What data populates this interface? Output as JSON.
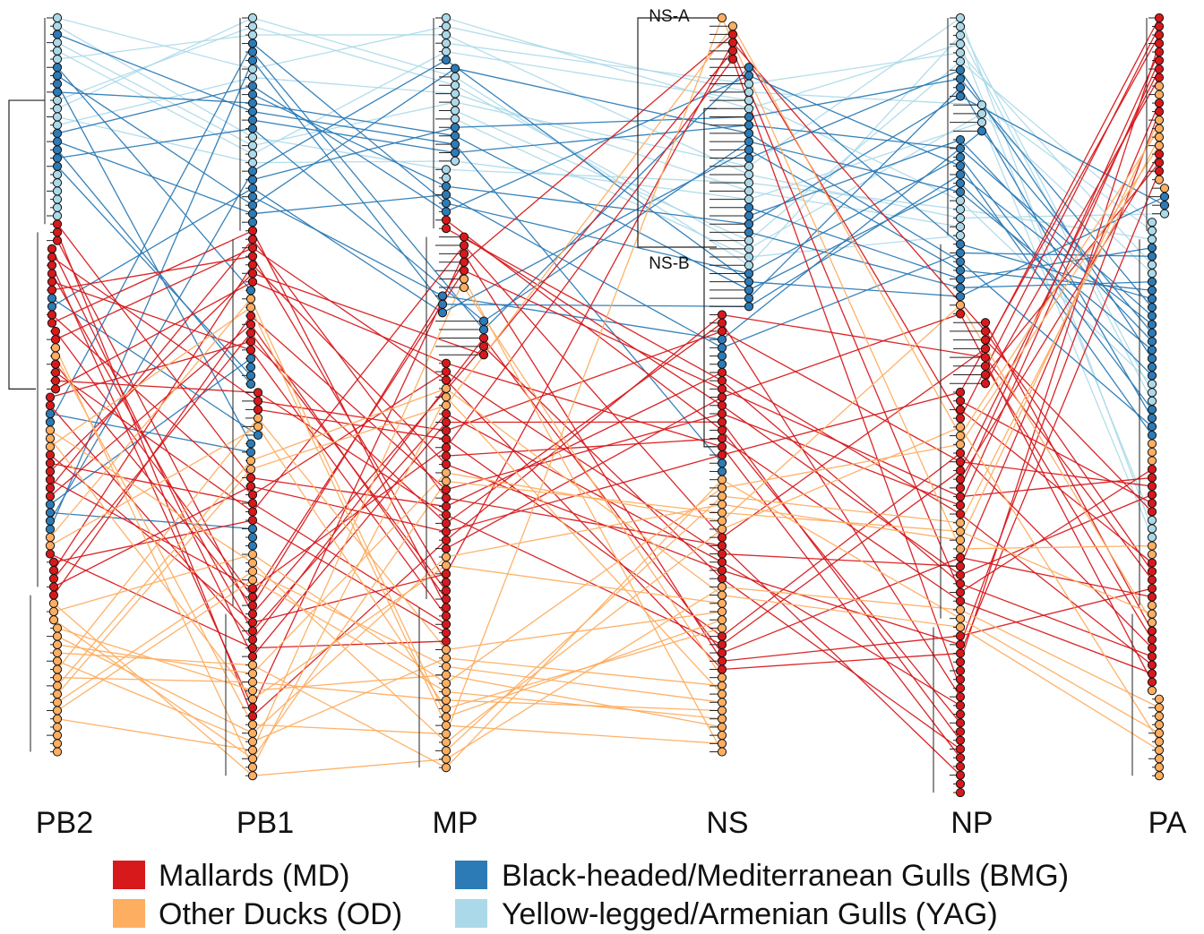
{
  "figure": {
    "segments": [
      "PB2",
      "PB1",
      "MP",
      "NS",
      "NP",
      "PA"
    ],
    "clade_labels": {
      "upper": "NS-A",
      "lower": "NS-B"
    }
  },
  "legend": [
    {
      "key": "MD",
      "label": "Mallards (MD)",
      "color": "#d7191c"
    },
    {
      "key": "OD",
      "label": "Other Ducks (OD)",
      "color": "#fdae61"
    },
    {
      "key": "BMG",
      "label": "Black-headed/Mediterranean Gulls (BMG)",
      "color": "#2c7bb6"
    },
    {
      "key": "YAG",
      "label": "Yellow-legged/Armenian Gulls (YAG)",
      "color": "#abd9e9"
    }
  ],
  "colors": {
    "MD": "#d7191c",
    "OD": "#fdae61",
    "BMG": "#2c7bb6",
    "YAG": "#abd9e9",
    "tree": "#222222"
  }
}
